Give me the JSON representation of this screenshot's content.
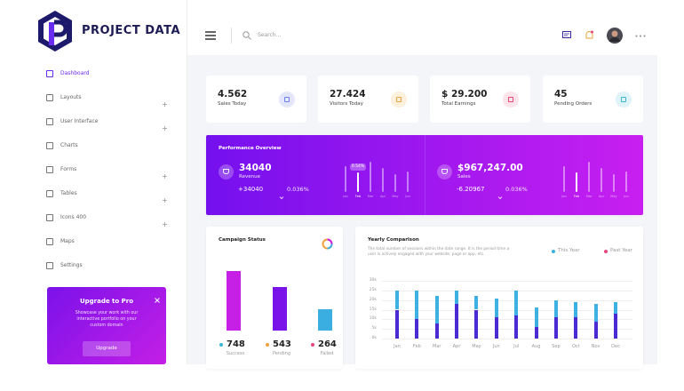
{
  "header": {
    "brand": "PROJECT DATA",
    "search_placeholder": "Search..."
  },
  "sidebar": {
    "items": [
      {
        "label": "Dashboard",
        "active": true,
        "expandable": false
      },
      {
        "label": "Layouts",
        "active": false,
        "expandable": true
      },
      {
        "label": "User Interface",
        "active": false,
        "expandable": true
      },
      {
        "label": "Charts",
        "active": false,
        "expandable": false
      },
      {
        "label": "Forms",
        "active": false,
        "expandable": true
      },
      {
        "label": "Tables",
        "active": false,
        "expandable": true
      },
      {
        "label": "Icons 400",
        "active": false,
        "expandable": true
      },
      {
        "label": "Maps",
        "active": false,
        "expandable": false
      },
      {
        "label": "Settings",
        "active": false,
        "expandable": false
      }
    ]
  },
  "promo": {
    "title": "Upgrade to Pro",
    "text": "Showcase your work with our interactive portfolio on your custom domain",
    "button": "Upgrade"
  },
  "stats": [
    {
      "value": "4.562",
      "label": "Sales Today",
      "icon_color": "#6f7fe8",
      "icon_bg": "#e4e6fb"
    },
    {
      "value": "27.424",
      "label": "Visitors Today",
      "icon_color": "#f0a23a",
      "icon_bg": "#fdf0dc"
    },
    {
      "value": "$ 29.200",
      "label": "Total Earnings",
      "icon_color": "#e8467a",
      "icon_bg": "#fde3ea"
    },
    {
      "value": "45",
      "label": "Pending Orders",
      "icon_color": "#3bb6d6",
      "icon_bg": "#dff3f8"
    }
  ],
  "performance": {
    "title": "Performance Overview",
    "active_month": 1,
    "panels": [
      {
        "value": "34040",
        "label": "Revenue",
        "change": "+34040",
        "percent": "0.036%",
        "highlight_label": "0.54%",
        "months": [
          "Jan",
          "Feb",
          "Mar",
          "Apr",
          "May",
          "Jun"
        ],
        "bars": [
          80,
          60,
          95,
          75,
          55,
          65
        ]
      },
      {
        "value": "$967,247.00",
        "label": "Sales",
        "change": "-6.20967",
        "percent": "0.036%",
        "months": [
          "Jan",
          "Feb",
          "Mar",
          "Apr",
          "May",
          "Jun"
        ],
        "bars": [
          80,
          60,
          95,
          75,
          55,
          65
        ]
      }
    ]
  },
  "campaign": {
    "title": "Campaign Status",
    "series": [
      {
        "name": "Success",
        "value": 748,
        "color": "#c61fe6",
        "dot_color": "#3bb6d6"
      },
      {
        "name": "Pending",
        "value": 543,
        "color": "#7a12ea",
        "dot_color": "#f0a23a"
      },
      {
        "name": "Failed",
        "value": 264,
        "color": "#3aaee0",
        "dot_color": "#e8467a"
      }
    ]
  },
  "yearly": {
    "title": "Yearly Comparison",
    "description": "The total number of sessions within the date range. It is the period time a user is actively engaged with your website, page or app, etc.",
    "categories": [
      "Jan",
      "Feb",
      "Mar",
      "Apr",
      "May",
      "Jun",
      "Jul",
      "Aug",
      "Sep",
      "Oct",
      "Nov",
      "Dec"
    ],
    "series": [
      {
        "name": "This Year",
        "color": "#3db2e2",
        "legend_color": "#3db2e2",
        "values": [
          10000,
          15000,
          14000,
          7000,
          7000,
          10000,
          13000,
          10000,
          9000,
          8000,
          9000,
          6000
        ]
      },
      {
        "name": "Past Year",
        "color": "#4a2ad3",
        "legend_color": "#e8467a",
        "values": [
          15000,
          10000,
          8000,
          18000,
          15000,
          11000,
          12000,
          6000,
          11000,
          11000,
          9000,
          13000
        ]
      }
    ],
    "ylim": [
      0,
      30000
    ],
    "yticks": [
      {
        "value": 0,
        "label": "0k"
      },
      {
        "value": 5000,
        "label": "5k"
      },
      {
        "value": 10000,
        "label": "10k"
      },
      {
        "value": 15000,
        "label": "15k"
      },
      {
        "value": 20000,
        "label": "20k"
      },
      {
        "value": 25000,
        "label": "25k"
      },
      {
        "value": 30000,
        "label": "30k"
      }
    ],
    "grid": true
  }
}
